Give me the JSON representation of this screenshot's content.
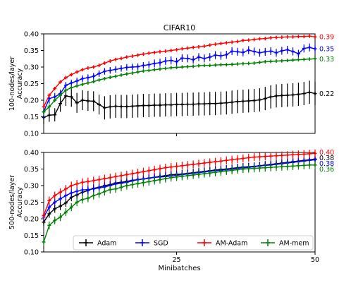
{
  "chart_data": [
    {
      "type": "line",
      "title": "CIFAR10",
      "xlabel": "",
      "ylabel": "100-nodes/layer\nAccuracy",
      "xlim": [
        1,
        50
      ],
      "ylim": [
        0.1,
        0.4
      ],
      "yticks": [
        "0.10",
        "0.15",
        "0.20",
        "0.25",
        "0.30",
        "0.35",
        "0.40"
      ],
      "xticks": [],
      "grid": false,
      "x": [
        1,
        2,
        3,
        4,
        5,
        6,
        7,
        8,
        9,
        10,
        11,
        12,
        13,
        14,
        15,
        16,
        17,
        18,
        19,
        20,
        21,
        22,
        23,
        24,
        25,
        26,
        27,
        28,
        29,
        30,
        31,
        32,
        33,
        34,
        35,
        36,
        37,
        38,
        39,
        40,
        41,
        42,
        43,
        44,
        45,
        46,
        47,
        48,
        49,
        50
      ],
      "series": [
        {
          "name": "Adam",
          "color": "#000000",
          "values": [
            0.148,
            0.155,
            0.156,
            0.19,
            0.213,
            0.21,
            0.192,
            0.2,
            0.198,
            0.197,
            0.187,
            0.177,
            0.18,
            0.182,
            0.181,
            0.181,
            0.182,
            0.183,
            0.184,
            0.184,
            0.185,
            0.185,
            0.186,
            0.186,
            0.187,
            0.187,
            0.188,
            0.188,
            0.189,
            0.189,
            0.19,
            0.19,
            0.191,
            0.192,
            0.194,
            0.196,
            0.197,
            0.198,
            0.199,
            0.201,
            0.205,
            0.21,
            0.213,
            0.214,
            0.215,
            0.216,
            0.218,
            0.22,
            0.224,
            0.22
          ],
          "errors": [
            0.02,
            0.02,
            0.02,
            0.025,
            0.03,
            0.03,
            0.03,
            0.03,
            0.03,
            0.03,
            0.03,
            0.035,
            0.035,
            0.035,
            0.035,
            0.035,
            0.035,
            0.035,
            0.035,
            0.035,
            0.035,
            0.035,
            0.035,
            0.035,
            0.035,
            0.035,
            0.035,
            0.035,
            0.035,
            0.035,
            0.035,
            0.035,
            0.035,
            0.035,
            0.035,
            0.035,
            0.035,
            0.035,
            0.035,
            0.035,
            0.035,
            0.035,
            0.035,
            0.035,
            0.035,
            0.035,
            0.035,
            0.035,
            0.035,
            0.035
          ],
          "end_label": "0.22"
        },
        {
          "name": "SGD",
          "color": "#0000ff",
          "values": [
            0.165,
            0.205,
            0.21,
            0.22,
            0.245,
            0.252,
            0.258,
            0.265,
            0.268,
            0.272,
            0.28,
            0.287,
            0.29,
            0.293,
            0.296,
            0.299,
            0.3,
            0.301,
            0.305,
            0.307,
            0.311,
            0.313,
            0.318,
            0.32,
            0.316,
            0.327,
            0.326,
            0.322,
            0.33,
            0.326,
            0.33,
            0.336,
            0.334,
            0.337,
            0.348,
            0.346,
            0.344,
            0.351,
            0.347,
            0.343,
            0.346,
            0.348,
            0.343,
            0.349,
            0.352,
            0.347,
            0.34,
            0.356,
            0.359,
            0.355
          ],
          "errors": [
            0.02,
            0.015,
            0.012,
            0.012,
            0.01,
            0.01,
            0.01,
            0.01,
            0.01,
            0.01,
            0.01,
            0.01,
            0.01,
            0.01,
            0.01,
            0.01,
            0.01,
            0.01,
            0.01,
            0.01,
            0.012,
            0.012,
            0.012,
            0.012,
            0.012,
            0.012,
            0.012,
            0.012,
            0.012,
            0.012,
            0.012,
            0.012,
            0.012,
            0.012,
            0.012,
            0.012,
            0.012,
            0.012,
            0.012,
            0.012,
            0.012,
            0.012,
            0.012,
            0.012,
            0.012,
            0.012,
            0.012,
            0.012,
            0.012,
            0.012
          ],
          "end_label": "0.35"
        },
        {
          "name": "AM-Adam",
          "color": "#ff0000",
          "values": [
            0.18,
            0.215,
            0.235,
            0.255,
            0.268,
            0.277,
            0.285,
            0.292,
            0.297,
            0.3,
            0.305,
            0.312,
            0.318,
            0.323,
            0.326,
            0.33,
            0.333,
            0.336,
            0.339,
            0.342,
            0.344,
            0.346,
            0.348,
            0.35,
            0.352,
            0.355,
            0.357,
            0.359,
            0.361,
            0.363,
            0.366,
            0.369,
            0.371,
            0.373,
            0.375,
            0.377,
            0.38,
            0.381,
            0.383,
            0.385,
            0.386,
            0.388,
            0.389,
            0.39,
            0.391,
            0.391,
            0.392,
            0.392,
            0.393,
            0.391
          ],
          "errors": [
            0.008,
            0.005,
            0.004,
            0.004,
            0.004,
            0.004,
            0.004,
            0.004,
            0.004,
            0.004,
            0.004,
            0.004,
            0.004,
            0.004,
            0.004,
            0.004,
            0.004,
            0.004,
            0.004,
            0.004,
            0.004,
            0.004,
            0.004,
            0.004,
            0.004,
            0.004,
            0.004,
            0.004,
            0.004,
            0.004,
            0.004,
            0.004,
            0.004,
            0.004,
            0.004,
            0.004,
            0.004,
            0.004,
            0.004,
            0.004,
            0.004,
            0.004,
            0.004,
            0.004,
            0.004,
            0.004,
            0.004,
            0.004,
            0.004,
            0.004
          ],
          "end_label": "0.39"
        },
        {
          "name": "AM-mem",
          "color": "#008000",
          "values": [
            0.165,
            0.18,
            0.2,
            0.215,
            0.23,
            0.238,
            0.243,
            0.248,
            0.252,
            0.256,
            0.261,
            0.265,
            0.269,
            0.272,
            0.276,
            0.279,
            0.282,
            0.285,
            0.288,
            0.29,
            0.292,
            0.294,
            0.296,
            0.298,
            0.299,
            0.3,
            0.301,
            0.302,
            0.304,
            0.305,
            0.305,
            0.306,
            0.307,
            0.307,
            0.308,
            0.309,
            0.31,
            0.311,
            0.312,
            0.314,
            0.316,
            0.317,
            0.318,
            0.319,
            0.32,
            0.321,
            0.322,
            0.323,
            0.324,
            0.325
          ],
          "errors": [
            0.01,
            0.008,
            0.006,
            0.005,
            0.005,
            0.004,
            0.004,
            0.004,
            0.004,
            0.004,
            0.004,
            0.004,
            0.004,
            0.004,
            0.004,
            0.004,
            0.004,
            0.004,
            0.004,
            0.004,
            0.004,
            0.004,
            0.004,
            0.004,
            0.004,
            0.004,
            0.004,
            0.004,
            0.004,
            0.004,
            0.004,
            0.004,
            0.004,
            0.004,
            0.004,
            0.004,
            0.004,
            0.004,
            0.004,
            0.004,
            0.004,
            0.004,
            0.004,
            0.004,
            0.004,
            0.004,
            0.004,
            0.004,
            0.004,
            0.004
          ],
          "end_label": "0.33"
        }
      ]
    },
    {
      "type": "line",
      "title": "",
      "xlabel": "Minibatches",
      "ylabel": "500-nodes/layer\nAccuracy",
      "xlim": [
        1,
        50
      ],
      "ylim": [
        0.1,
        0.4
      ],
      "yticks": [
        "0.10",
        "0.15",
        "0.20",
        "0.25",
        "0.30",
        "0.35",
        "0.40"
      ],
      "xticks": [
        "25",
        "50"
      ],
      "grid": false,
      "legend": {
        "placement": "lower-right",
        "entries": [
          "Adam",
          "SGD",
          "AM-Adam",
          "AM-mem"
        ]
      },
      "x": [
        1,
        2,
        3,
        4,
        5,
        6,
        7,
        8,
        9,
        10,
        11,
        12,
        13,
        14,
        15,
        16,
        17,
        18,
        19,
        20,
        21,
        22,
        23,
        24,
        25,
        26,
        27,
        28,
        29,
        30,
        31,
        32,
        33,
        34,
        35,
        36,
        37,
        38,
        39,
        40,
        41,
        42,
        43,
        44,
        45,
        46,
        47,
        48,
        49,
        50
      ],
      "series": [
        {
          "name": "Adam",
          "color": "#000000",
          "values": [
            0.19,
            0.215,
            0.23,
            0.238,
            0.248,
            0.265,
            0.272,
            0.28,
            0.285,
            0.292,
            0.295,
            0.3,
            0.303,
            0.308,
            0.31,
            0.313,
            0.316,
            0.318,
            0.32,
            0.323,
            0.325,
            0.328,
            0.33,
            0.333,
            0.334,
            0.335,
            0.337,
            0.339,
            0.341,
            0.343,
            0.345,
            0.347,
            0.349,
            0.35,
            0.352,
            0.354,
            0.356,
            0.357,
            0.358,
            0.36,
            0.362,
            0.364,
            0.366,
            0.368,
            0.37,
            0.372,
            0.374,
            0.376,
            0.378,
            0.38
          ],
          "errors": [
            0.012,
            0.012,
            0.012,
            0.012,
            0.012,
            0.012,
            0.012,
            0.012,
            0.012,
            0.012,
            0.012,
            0.012,
            0.012,
            0.012,
            0.012,
            0.012,
            0.012,
            0.012,
            0.012,
            0.012,
            0.012,
            0.012,
            0.012,
            0.012,
            0.012,
            0.012,
            0.012,
            0.012,
            0.012,
            0.012,
            0.012,
            0.012,
            0.012,
            0.012,
            0.012,
            0.012,
            0.012,
            0.012,
            0.012,
            0.012,
            0.012,
            0.012,
            0.012,
            0.012,
            0.012,
            0.012,
            0.012,
            0.012,
            0.012,
            0.012
          ],
          "end_label": "0.38"
        },
        {
          "name": "SGD",
          "color": "#0000ff",
          "values": [
            0.205,
            0.235,
            0.25,
            0.26,
            0.27,
            0.278,
            0.283,
            0.287,
            0.288,
            0.29,
            0.293,
            0.296,
            0.3,
            0.305,
            0.307,
            0.31,
            0.314,
            0.318,
            0.32,
            0.322,
            0.325,
            0.326,
            0.327,
            0.329,
            0.331,
            0.333,
            0.335,
            0.337,
            0.339,
            0.341,
            0.343,
            0.345,
            0.346,
            0.348,
            0.35,
            0.352,
            0.354,
            0.355,
            0.357,
            0.359,
            0.361,
            0.362,
            0.364,
            0.366,
            0.368,
            0.37,
            0.372,
            0.374,
            0.376,
            0.378
          ],
          "errors": [
            0.012,
            0.012,
            0.012,
            0.012,
            0.012,
            0.012,
            0.012,
            0.012,
            0.012,
            0.012,
            0.012,
            0.012,
            0.012,
            0.012,
            0.012,
            0.012,
            0.012,
            0.012,
            0.012,
            0.012,
            0.012,
            0.012,
            0.012,
            0.012,
            0.012,
            0.012,
            0.012,
            0.012,
            0.012,
            0.012,
            0.012,
            0.012,
            0.012,
            0.012,
            0.012,
            0.012,
            0.012,
            0.012,
            0.012,
            0.012,
            0.012,
            0.012,
            0.012,
            0.012,
            0.012,
            0.012,
            0.012,
            0.012,
            0.012,
            0.012
          ],
          "end_label": "0.38"
        },
        {
          "name": "AM-Adam",
          "color": "#ff0000",
          "values": [
            0.21,
            0.255,
            0.27,
            0.28,
            0.29,
            0.3,
            0.305,
            0.31,
            0.312,
            0.315,
            0.318,
            0.321,
            0.324,
            0.327,
            0.33,
            0.333,
            0.336,
            0.339,
            0.342,
            0.345,
            0.348,
            0.351,
            0.354,
            0.356,
            0.358,
            0.36,
            0.362,
            0.364,
            0.366,
            0.368,
            0.37,
            0.372,
            0.374,
            0.376,
            0.378,
            0.38,
            0.382,
            0.384,
            0.386,
            0.387,
            0.388,
            0.389,
            0.39,
            0.391,
            0.392,
            0.393,
            0.394,
            0.395,
            0.396,
            0.397
          ],
          "errors": [
            0.012,
            0.012,
            0.012,
            0.012,
            0.012,
            0.012,
            0.012,
            0.012,
            0.012,
            0.012,
            0.012,
            0.012,
            0.012,
            0.012,
            0.012,
            0.012,
            0.012,
            0.012,
            0.012,
            0.012,
            0.012,
            0.012,
            0.012,
            0.012,
            0.012,
            0.012,
            0.012,
            0.012,
            0.012,
            0.012,
            0.012,
            0.012,
            0.012,
            0.012,
            0.012,
            0.012,
            0.012,
            0.012,
            0.012,
            0.012,
            0.012,
            0.012,
            0.012,
            0.012,
            0.012,
            0.012,
            0.012,
            0.012,
            0.012,
            0.012
          ],
          "end_label": "0.40"
        },
        {
          "name": "AM-mem",
          "color": "#008000",
          "values": [
            0.13,
            0.18,
            0.195,
            0.205,
            0.22,
            0.235,
            0.25,
            0.258,
            0.262,
            0.27,
            0.275,
            0.282,
            0.288,
            0.29,
            0.295,
            0.3,
            0.303,
            0.306,
            0.309,
            0.312,
            0.315,
            0.318,
            0.321,
            0.324,
            0.326,
            0.328,
            0.33,
            0.332,
            0.334,
            0.336,
            0.338,
            0.34,
            0.342,
            0.344,
            0.346,
            0.348,
            0.35,
            0.351,
            0.352,
            0.353,
            0.354,
            0.355,
            0.356,
            0.357,
            0.358,
            0.359,
            0.36,
            0.361,
            0.362,
            0.362
          ],
          "errors": [
            0.012,
            0.012,
            0.012,
            0.012,
            0.012,
            0.012,
            0.012,
            0.012,
            0.012,
            0.012,
            0.012,
            0.012,
            0.012,
            0.012,
            0.012,
            0.012,
            0.012,
            0.012,
            0.012,
            0.012,
            0.012,
            0.012,
            0.012,
            0.012,
            0.012,
            0.012,
            0.012,
            0.012,
            0.012,
            0.012,
            0.012,
            0.012,
            0.012,
            0.012,
            0.012,
            0.012,
            0.012,
            0.012,
            0.012,
            0.012,
            0.012,
            0.012,
            0.012,
            0.012,
            0.012,
            0.012,
            0.012,
            0.012,
            0.012,
            0.012
          ],
          "end_label": "0.36"
        }
      ]
    }
  ]
}
